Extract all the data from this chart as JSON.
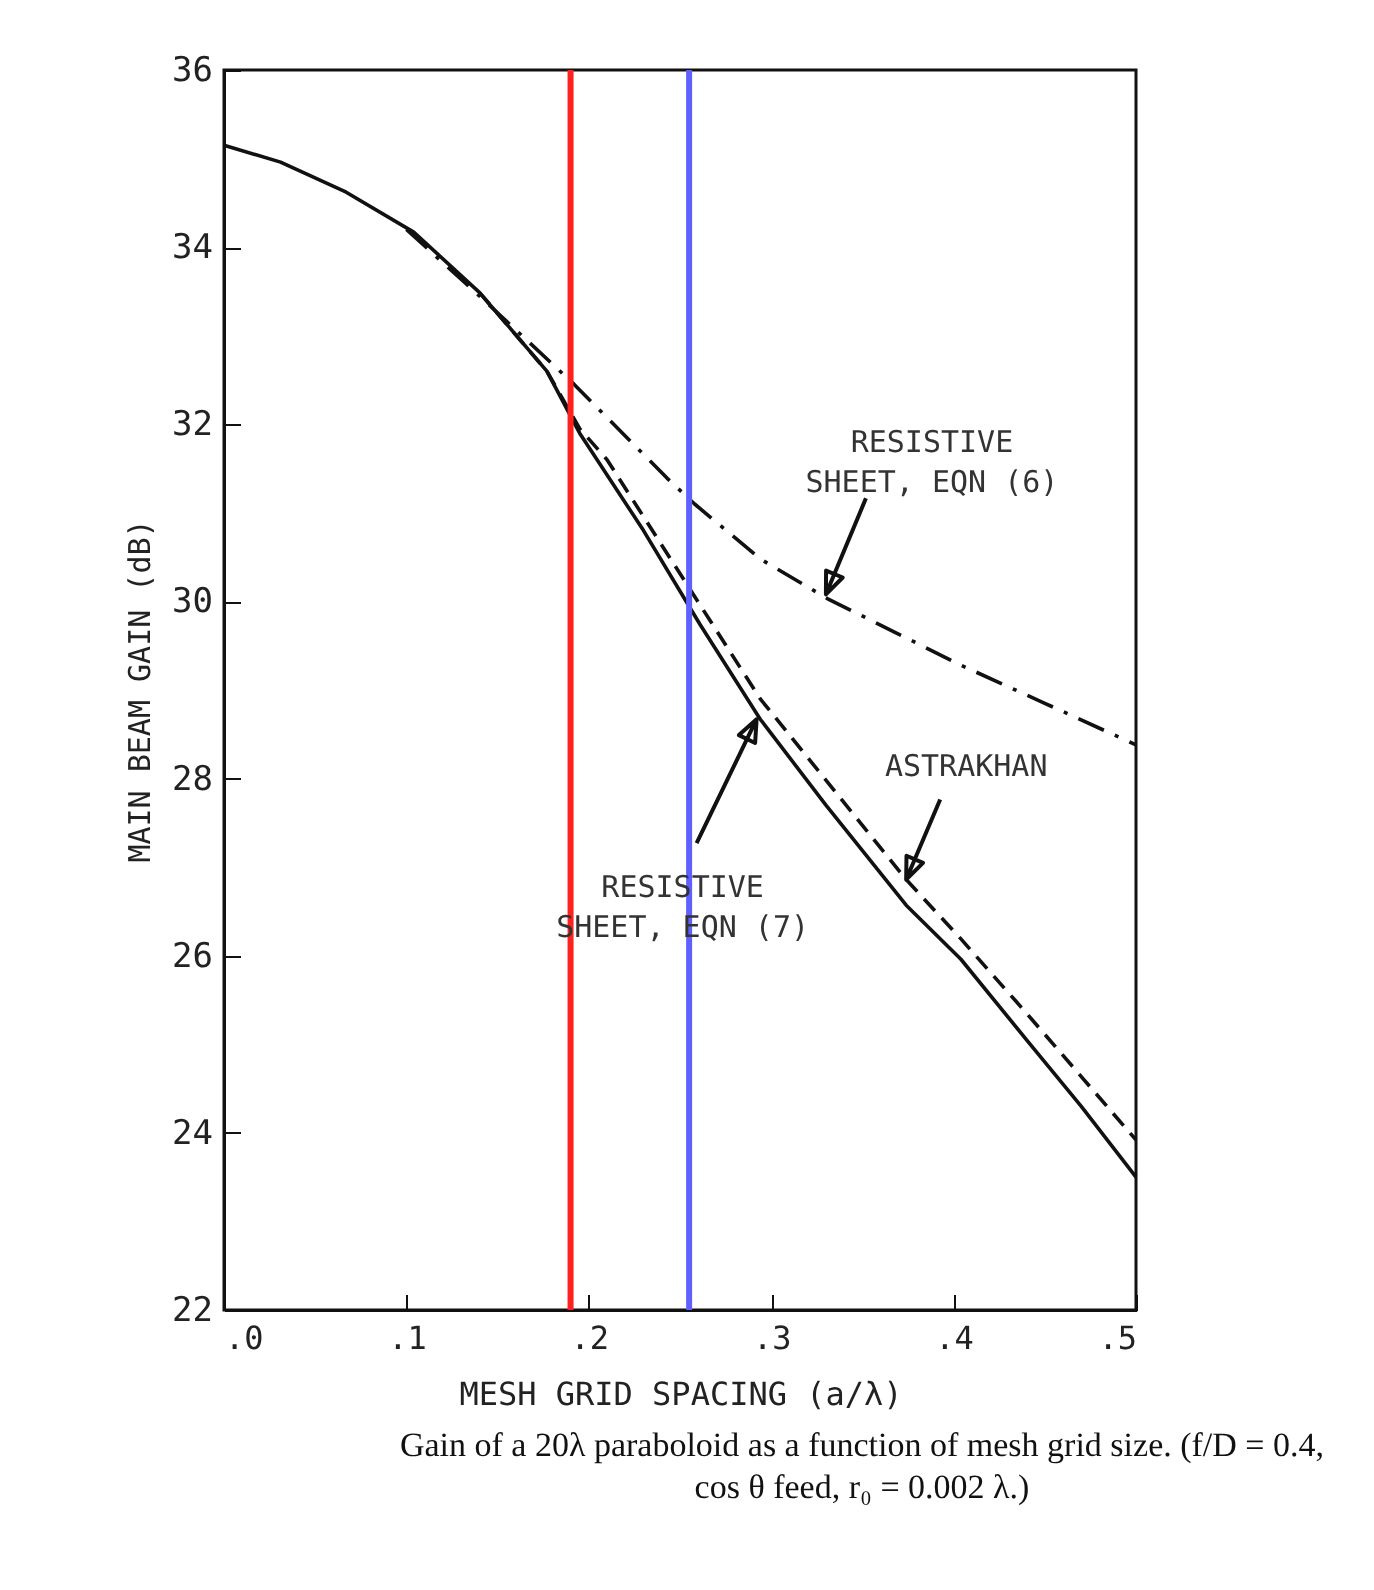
{
  "chart_data": {
    "type": "line",
    "xlabel": "MESH GRID SPACING (a/λ)",
    "ylabel": "MAIN BEAM GAIN (dB)",
    "xlim": [
      0,
      0.5
    ],
    "ylim": [
      22,
      36
    ],
    "xticks": [
      {
        "value": 0,
        "label": ".0"
      },
      {
        "value": 0.1,
        "label": ".1"
      },
      {
        "value": 0.2,
        "label": ".2"
      },
      {
        "value": 0.3,
        "label": ".3"
      },
      {
        "value": 0.4,
        "label": ".4"
      },
      {
        "value": 0.5,
        "label": ".5"
      }
    ],
    "yticks": [
      22,
      24,
      26,
      28,
      30,
      32,
      34,
      36
    ],
    "series": [
      {
        "color": "#111111",
        "line_style": "solid",
        "x": [
          0,
          0.031,
          0.067,
          0.104,
          0.14,
          0.177,
          0.195,
          0.23,
          0.261,
          0.294,
          0.33,
          0.374,
          0.404,
          0.44,
          0.47,
          0.5
        ],
        "values": [
          35.15,
          34.96,
          34.62,
          34.17,
          33.49,
          32.6,
          31.9,
          30.8,
          29.74,
          28.67,
          27.7,
          26.57,
          25.96,
          25.05,
          24.3,
          23.5
        ]
      },
      {
        "color": "#111111",
        "line_style": "dashed",
        "x": [
          0.14,
          0.177,
          0.195,
          0.21,
          0.261,
          0.294,
          0.374,
          0.404,
          0.44,
          0.5
        ],
        "values": [
          33.49,
          32.6,
          31.95,
          31.6,
          29.96,
          28.9,
          26.86,
          26.19,
          25.35,
          23.92
        ]
      },
      {
        "color": "#111111",
        "line_style": "dashdot",
        "x": [
          0.1,
          0.14,
          0.192,
          0.243,
          0.258,
          0.294,
          0.331,
          0.404,
          0.45,
          0.5
        ],
        "values": [
          34.2,
          33.45,
          32.45,
          31.39,
          31.1,
          30.48,
          30.03,
          29.28,
          28.85,
          28.38
        ]
      }
    ],
    "ref_lines": [
      {
        "axis": "x",
        "value": 0.19,
        "color": "#ff2020"
      },
      {
        "axis": "x",
        "value": 0.255,
        "color": "#6060ff"
      }
    ],
    "annotations": [
      {
        "text": "RESISTIVE\nSHEET, EQN (6)",
        "x": 0.33,
        "y": 30.08
      },
      {
        "text": "ASTRAKHAN",
        "x": 0.374,
        "y": 26.86
      },
      {
        "text": "RESISTIVE\nSHEET, EQN (7)",
        "x": 0.292,
        "y": 28.67
      },
      "Gain of a 20λ paraboloid as a function of mesh grid size. (f/D = 0.4, cos θ feed, r₀ = 0.002 λ.)"
    ]
  }
}
